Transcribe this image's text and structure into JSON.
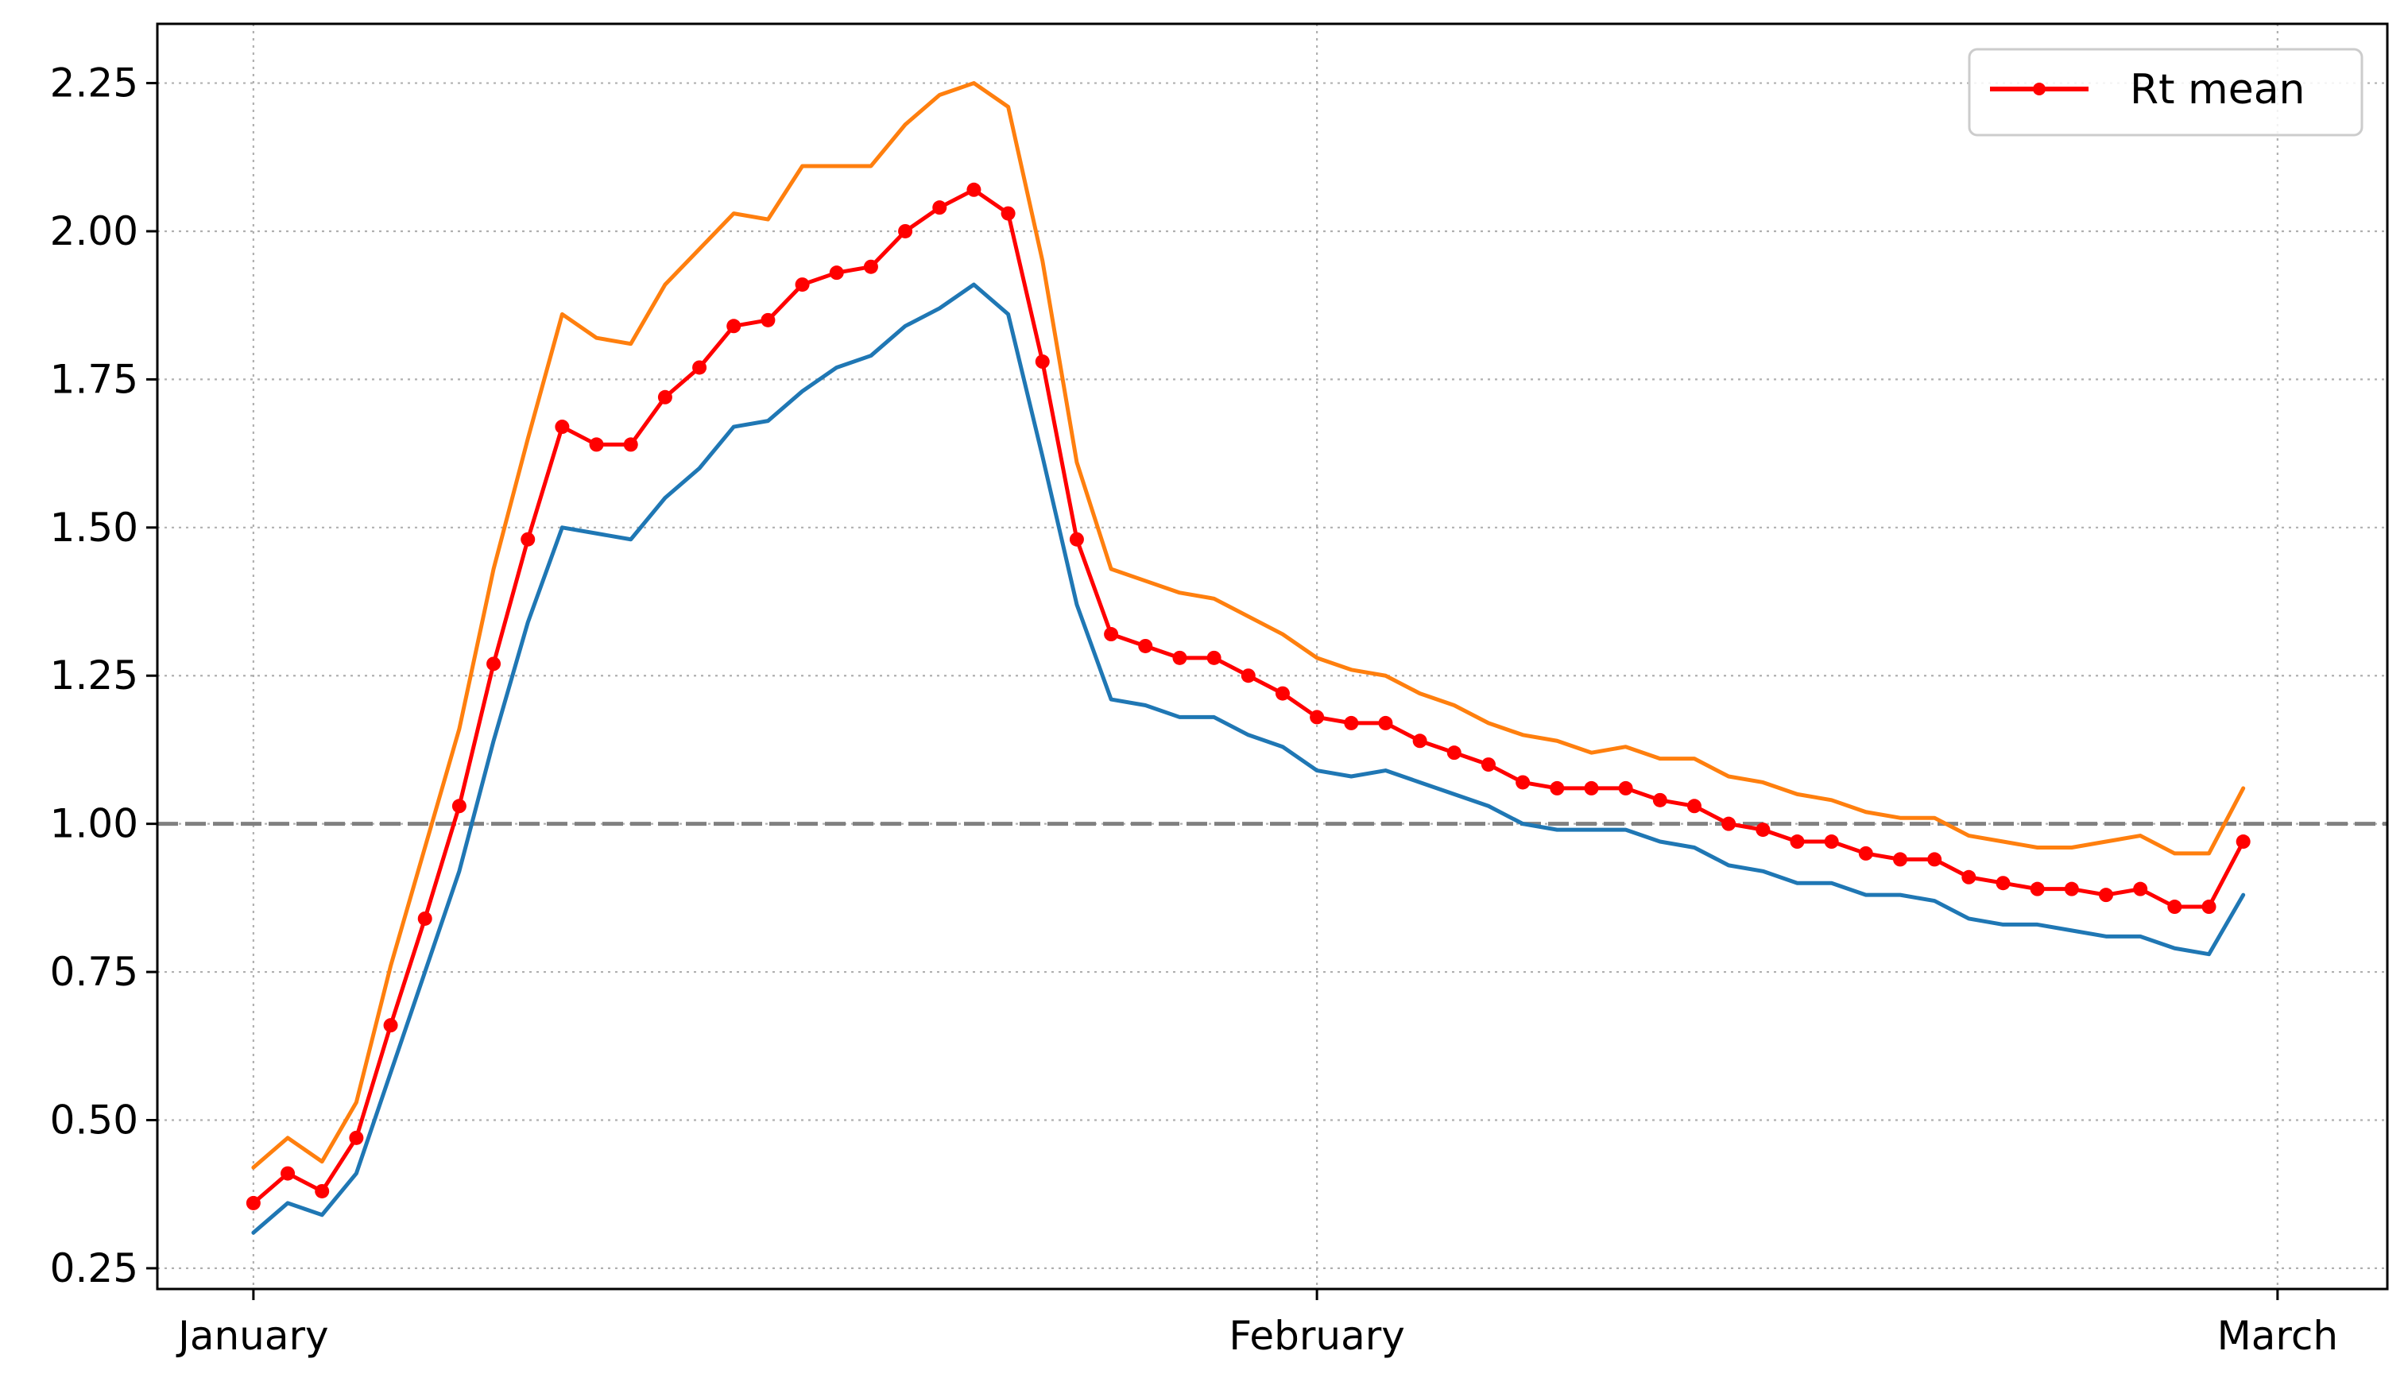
{
  "chart_data": {
    "type": "line",
    "title": "",
    "xlabel": "",
    "ylabel": "",
    "xlim": [
      -2.8,
      62.2
    ],
    "ylim": [
      0.215,
      2.35
    ],
    "x_ticks": [
      {
        "pos": 0,
        "label": "January"
      },
      {
        "pos": 31,
        "label": "February"
      },
      {
        "pos": 59,
        "label": "March"
      }
    ],
    "y_ticks": [
      {
        "value": 0.25,
        "label": "0.25"
      },
      {
        "value": 0.5,
        "label": "0.50"
      },
      {
        "value": 0.75,
        "label": "0.75"
      },
      {
        "value": 1.0,
        "label": "1.00"
      },
      {
        "value": 1.25,
        "label": "1.25"
      },
      {
        "value": 1.5,
        "label": "1.50"
      },
      {
        "value": 1.75,
        "label": "1.75"
      },
      {
        "value": 2.0,
        "label": "2.00"
      },
      {
        "value": 2.25,
        "label": "2.25"
      }
    ],
    "grid": true,
    "reference_line": {
      "value": 1.0,
      "color": "#808080"
    },
    "legend": {
      "placement": "top-right",
      "entries": [
        "Rt mean"
      ]
    },
    "series": [
      {
        "id": "lower",
        "color": "#1f77b4",
        "values": [
          0.31,
          0.36,
          0.34,
          0.41,
          0.58,
          0.75,
          0.92,
          1.14,
          1.34,
          1.5,
          1.49,
          1.48,
          1.55,
          1.6,
          1.67,
          1.68,
          1.73,
          1.77,
          1.79,
          1.84,
          1.87,
          1.91,
          1.86,
          1.62,
          1.37,
          1.21,
          1.2,
          1.18,
          1.18,
          1.15,
          1.13,
          1.09,
          1.08,
          1.09,
          1.07,
          1.05,
          1.03,
          1.0,
          0.99,
          0.99,
          0.99,
          0.97,
          0.96,
          0.93,
          0.92,
          0.9,
          0.9,
          0.88,
          0.88,
          0.87,
          0.84,
          0.83,
          0.83,
          0.82,
          0.81,
          0.81,
          0.79,
          0.78,
          0.88
        ]
      },
      {
        "id": "upper",
        "color": "#ff7f0e",
        "values": [
          0.42,
          0.47,
          0.43,
          0.53,
          0.76,
          0.96,
          1.16,
          1.43,
          1.65,
          1.86,
          1.82,
          1.81,
          1.91,
          1.97,
          2.03,
          2.02,
          2.11,
          2.11,
          2.11,
          2.18,
          2.23,
          2.25,
          2.21,
          1.95,
          1.61,
          1.43,
          1.41,
          1.39,
          1.38,
          1.35,
          1.32,
          1.28,
          1.26,
          1.25,
          1.22,
          1.2,
          1.17,
          1.15,
          1.14,
          1.12,
          1.13,
          1.11,
          1.11,
          1.08,
          1.07,
          1.05,
          1.04,
          1.02,
          1.01,
          1.01,
          0.98,
          0.97,
          0.96,
          0.96,
          0.97,
          0.98,
          0.95,
          0.95,
          1.06
        ]
      },
      {
        "id": "mean",
        "name": "Rt mean",
        "color": "#ff0000",
        "markers": true,
        "values": [
          0.36,
          0.41,
          0.38,
          0.47,
          0.66,
          0.84,
          1.03,
          1.27,
          1.48,
          1.67,
          1.64,
          1.64,
          1.72,
          1.77,
          1.84,
          1.85,
          1.91,
          1.93,
          1.94,
          2.0,
          2.04,
          2.07,
          2.03,
          1.78,
          1.48,
          1.32,
          1.3,
          1.28,
          1.28,
          1.25,
          1.22,
          1.18,
          1.17,
          1.17,
          1.14,
          1.12,
          1.1,
          1.07,
          1.06,
          1.06,
          1.06,
          1.04,
          1.03,
          1.0,
          0.99,
          0.97,
          0.97,
          0.95,
          0.94,
          0.94,
          0.91,
          0.9,
          0.89,
          0.89,
          0.88,
          0.89,
          0.86,
          0.86,
          0.97
        ]
      }
    ]
  }
}
